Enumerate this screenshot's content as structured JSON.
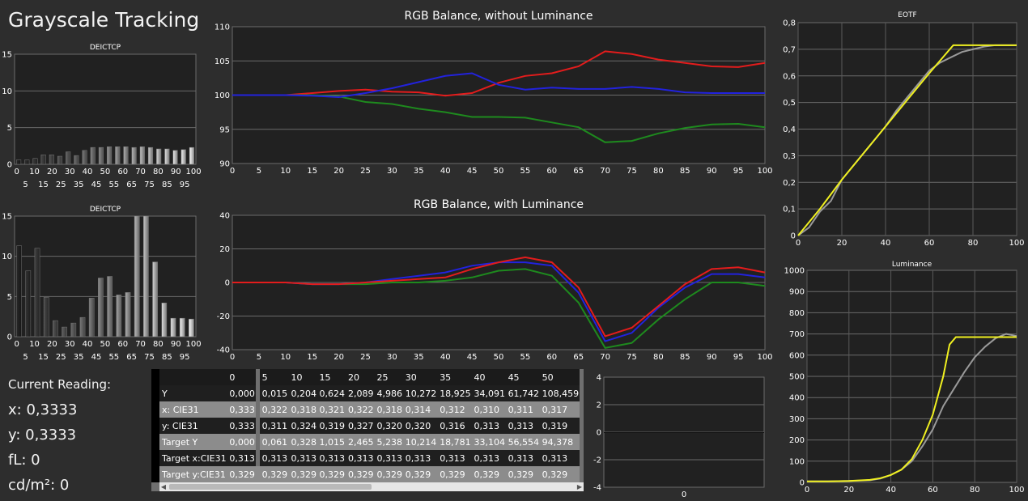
{
  "title": "Grayscale Tracking",
  "reading": {
    "heading": "Current Reading:",
    "x": "x: 0,3333",
    "y": "y: 0,3333",
    "fl": "fL: 0",
    "cdm2": "cd/m²: 0"
  },
  "colors": {
    "red": "#e31c1c",
    "green": "#1e8a1e",
    "blue": "#2222dd",
    "yellow": "#f0f020",
    "gray": "#9a9a9a"
  },
  "chart_data": [
    {
      "id": "deictcp1",
      "type": "bar",
      "title": "DEICTCP",
      "ylim": [
        0,
        15
      ],
      "yticks": [
        "0",
        "5",
        "10",
        "15"
      ],
      "xticks_top": [
        "0",
        "10",
        "20",
        "30",
        "40",
        "50",
        "60",
        "70",
        "80",
        "90",
        "100"
      ],
      "xticks_bottom": [
        "5",
        "15",
        "25",
        "35",
        "45",
        "55",
        "65",
        "75",
        "85",
        "95"
      ],
      "values": [
        0.6,
        0.6,
        0.8,
        1.3,
        1.3,
        1.1,
        1.7,
        1.2,
        1.9,
        2.3,
        2.3,
        2.4,
        2.4,
        2.4,
        2.3,
        2.4,
        2.3,
        2.1,
        2.1,
        1.9,
        2.0,
        2.3
      ]
    },
    {
      "id": "deictcp2",
      "type": "bar",
      "title": "DEICTCP",
      "ylim": [
        0,
        15
      ],
      "yticks": [
        "0",
        "5",
        "10",
        "15"
      ],
      "xticks_top": [
        "0",
        "10",
        "20",
        "30",
        "40",
        "50",
        "60",
        "70",
        "80",
        "90",
        "100"
      ],
      "xticks_bottom": [
        "5",
        "15",
        "25",
        "35",
        "45",
        "55",
        "65",
        "75",
        "85",
        "95"
      ],
      "values": [
        11.3,
        8.2,
        11.0,
        4.9,
        2.0,
        1.2,
        1.7,
        2.4,
        4.8,
        7.3,
        7.5,
        5.2,
        5.5,
        15.0,
        15.0,
        9.3,
        4.2,
        2.3,
        2.3,
        2.2
      ]
    },
    {
      "id": "rgb1",
      "type": "line",
      "title": "RGB Balance, without Luminance",
      "ylim": [
        90,
        110
      ],
      "yticks": [
        "90",
        "95",
        "100",
        "105",
        "110"
      ],
      "xticks": [
        "0",
        "5",
        "10",
        "15",
        "20",
        "25",
        "30",
        "35",
        "40",
        "45",
        "50",
        "55",
        "60",
        "65",
        "70",
        "75",
        "80",
        "85",
        "90",
        "95",
        "100"
      ],
      "x": [
        0,
        5,
        10,
        15,
        20,
        25,
        30,
        35,
        40,
        45,
        50,
        55,
        60,
        65,
        70,
        75,
        80,
        85,
        90,
        95,
        100
      ],
      "series": [
        {
          "color": "red",
          "values": [
            100,
            100,
            100,
            100.3,
            100.6,
            100.8,
            100.5,
            100.4,
            99.9,
            100.3,
            101.8,
            102.8,
            103.2,
            104.2,
            106.4,
            106.0,
            105.2,
            104.7,
            104.2,
            104.1,
            104.7
          ]
        },
        {
          "color": "green",
          "values": [
            100,
            100,
            100,
            100,
            99.8,
            99.0,
            98.7,
            98.0,
            97.5,
            96.8,
            96.8,
            96.7,
            96.0,
            95.3,
            93.1,
            93.3,
            94.4,
            95.2,
            95.7,
            95.8,
            95.3
          ]
        },
        {
          "color": "blue",
          "values": [
            100,
            100,
            100,
            99.9,
            99.7,
            100.3,
            101.0,
            101.9,
            102.8,
            103.2,
            101.5,
            100.8,
            101.1,
            100.9,
            100.9,
            101.2,
            100.9,
            100.4,
            100.3,
            100.3,
            100.3
          ]
        }
      ]
    },
    {
      "id": "rgb2",
      "type": "line",
      "title": "RGB Balance, with Luminance",
      "ylim": [
        -40,
        40
      ],
      "yticks": [
        "-40",
        "-20",
        "0",
        "20",
        "40"
      ],
      "xticks": [
        "0",
        "5",
        "10",
        "15",
        "20",
        "25",
        "30",
        "35",
        "40",
        "45",
        "50",
        "55",
        "60",
        "65",
        "70",
        "75",
        "80",
        "85",
        "90",
        "95",
        "100"
      ],
      "x": [
        0,
        5,
        10,
        15,
        20,
        25,
        30,
        35,
        40,
        45,
        50,
        55,
        60,
        65,
        70,
        75,
        80,
        85,
        90,
        95,
        100
      ],
      "series": [
        {
          "color": "green",
          "values": [
            0,
            0,
            0,
            -1,
            -1,
            -1,
            0,
            0,
            1,
            3,
            7,
            8,
            4,
            -12,
            -39,
            -36,
            -22,
            -10,
            0,
            0,
            -2
          ]
        },
        {
          "color": "blue",
          "values": [
            0,
            0,
            0,
            -1,
            -1,
            0,
            2,
            4,
            6,
            10,
            12,
            12,
            10,
            -6,
            -35,
            -30,
            -15,
            -3,
            5,
            5,
            3
          ]
        },
        {
          "color": "red",
          "values": [
            0,
            0,
            0,
            -1,
            -1,
            0,
            1,
            2,
            3,
            8,
            12,
            15,
            12,
            -3,
            -32,
            -27,
            -14,
            -1,
            8,
            9,
            6
          ]
        }
      ]
    },
    {
      "id": "eotf",
      "type": "line",
      "title": "EOTF",
      "ylim": [
        0,
        0.8
      ],
      "yticks": [
        "0",
        "0,1",
        "0,2",
        "0,3",
        "0,4",
        "0,5",
        "0,6",
        "0,7",
        "0,8"
      ],
      "xticks": [
        "0",
        "20",
        "40",
        "60",
        "80",
        "100"
      ],
      "series": [
        {
          "color": "gray",
          "x": [
            0,
            5,
            10,
            15,
            20,
            25,
            30,
            35,
            40,
            45,
            50,
            55,
            60,
            65,
            70,
            75,
            80,
            85,
            90,
            95,
            100
          ],
          "values": [
            0,
            0.03,
            0.09,
            0.13,
            0.21,
            0.26,
            0.31,
            0.36,
            0.41,
            0.47,
            0.52,
            0.57,
            0.62,
            0.65,
            0.67,
            0.69,
            0.7,
            0.71,
            0.715,
            0.715,
            0.715
          ]
        },
        {
          "color": "yellow",
          "x": [
            0,
            10,
            20,
            30,
            40,
            50,
            60,
            71,
            80,
            90,
            100
          ],
          "values": [
            0,
            0.1,
            0.21,
            0.31,
            0.41,
            0.51,
            0.61,
            0.715,
            0.715,
            0.715,
            0.715
          ]
        }
      ]
    },
    {
      "id": "luminance",
      "type": "line",
      "title": "Luminance",
      "ylim": [
        0,
        1000
      ],
      "yticks": [
        "0",
        "100",
        "200",
        "300",
        "400",
        "500",
        "600",
        "700",
        "800",
        "900",
        "1000"
      ],
      "xticks": [
        "0",
        "20",
        "40",
        "60",
        "80",
        "100"
      ],
      "series": [
        {
          "color": "gray",
          "x": [
            0,
            10,
            20,
            30,
            35,
            40,
            45,
            50,
            55,
            60,
            65,
            70,
            75,
            80,
            85,
            90,
            95,
            100
          ],
          "values": [
            5,
            5,
            7,
            10,
            18,
            35,
            60,
            100,
            170,
            250,
            360,
            440,
            520,
            590,
            640,
            680,
            700,
            690
          ]
        },
        {
          "color": "yellow",
          "x": [
            0,
            10,
            20,
            30,
            35,
            40,
            45,
            50,
            55,
            60,
            65,
            68,
            71,
            80,
            90,
            100
          ],
          "values": [
            5,
            5,
            7,
            12,
            20,
            35,
            60,
            110,
            200,
            320,
            500,
            650,
            685,
            685,
            685,
            685
          ]
        }
      ]
    },
    {
      "id": "small",
      "type": "line",
      "title": "",
      "ylim": [
        -4,
        4
      ],
      "yticks": [
        "-4",
        "-2",
        "0",
        "2",
        "4"
      ],
      "xticks": [
        "0"
      ],
      "series": []
    }
  ],
  "table": {
    "headers": [
      "",
      "0",
      "5",
      "10",
      "15",
      "20",
      "25",
      "30",
      "35",
      "40",
      "45",
      "50"
    ],
    "rows": [
      {
        "label": "Y",
        "cells": [
          "0,000",
          "0,015",
          "0,204",
          "0,624",
          "2,089",
          "4,986",
          "10,272",
          "18,925",
          "34,091",
          "61,742",
          "108,459"
        ]
      },
      {
        "label": "x: CIE31",
        "cells": [
          "0,333",
          "0,322",
          "0,318",
          "0,321",
          "0,322",
          "0,318",
          "0,314",
          "0,312",
          "0,310",
          "0,311",
          "0,317"
        ]
      },
      {
        "label": "y: CIE31",
        "cells": [
          "0,333",
          "0,311",
          "0,324",
          "0,319",
          "0,327",
          "0,320",
          "0,320",
          "0,316",
          "0,313",
          "0,313",
          "0,319"
        ]
      },
      {
        "label": "Target Y",
        "cells": [
          "0,000",
          "0,061",
          "0,328",
          "1,015",
          "2,465",
          "5,238",
          "10,214",
          "18,781",
          "33,104",
          "56,554",
          "94,378"
        ]
      },
      {
        "label": "Target x:CIE31",
        "cells": [
          "0,313",
          "0,313",
          "0,313",
          "0,313",
          "0,313",
          "0,313",
          "0,313",
          "0,313",
          "0,313",
          "0,313",
          "0,313"
        ]
      },
      {
        "label": "Target y:CIE31",
        "cells": [
          "0,329",
          "0,329",
          "0,329",
          "0,329",
          "0,329",
          "0,329",
          "0,329",
          "0,329",
          "0,329",
          "0,329",
          "0,329"
        ]
      }
    ]
  }
}
